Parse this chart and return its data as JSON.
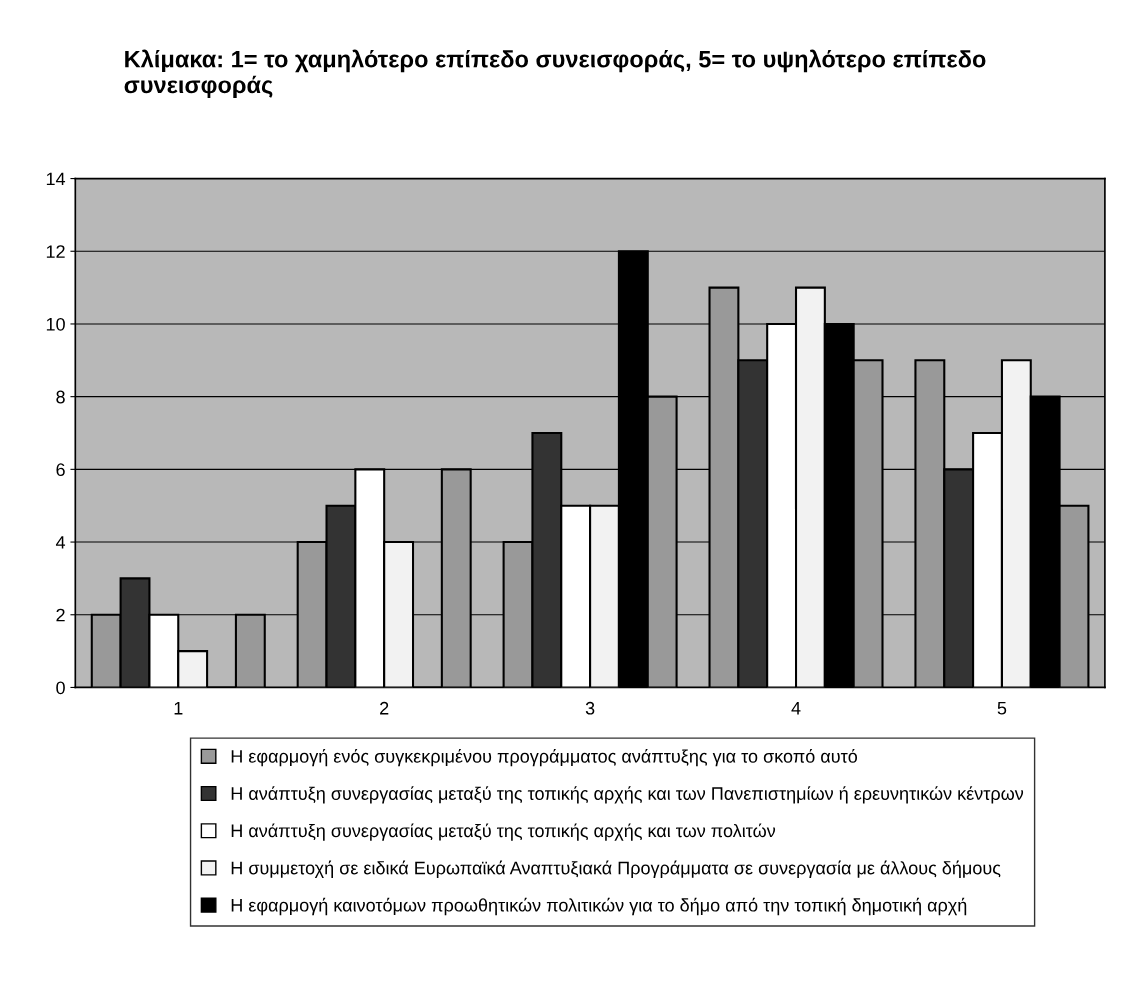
{
  "chart_data": {
    "type": "bar",
    "title": "Κλίμακα: 1= το χαμηλότερο επίπεδο συνεισφοράς, 5= το υψηλότερο επίπεδο συνεισφοράς",
    "categories": [
      "1",
      "2",
      "3",
      "4",
      "5"
    ],
    "series": [
      {
        "name": "Η εφαρμογή ενός συγκεκριμένου προγράμματος ανάπτυξης για το σκοπό αυτό",
        "color": "#999999",
        "values": [
          2,
          4,
          4,
          11,
          9
        ]
      },
      {
        "name": "Η ανάπτυξη συνεργασίας μεταξύ της τοπικής αρχής και των Πανεπιστημίων ή ερευνητικών κέντρων",
        "color": "#333333",
        "values": [
          3,
          5,
          7,
          9,
          6
        ]
      },
      {
        "name": "Η ανάπτυξη συνεργασίας μεταξύ της τοπικής αρχής και των πολιτών",
        "color": "#ffffff",
        "values": [
          2,
          6,
          5,
          10,
          7
        ]
      },
      {
        "name": "Η συμμετοχή σε ειδικά Ευρωπαϊκά Αναπτυξιακά Προγράμματα σε συνεργασία με άλλους δήμους",
        "color": "#f2f2f2",
        "values": [
          1,
          4,
          5,
          11,
          9
        ]
      },
      {
        "name": "Η εφαρμογή καινοτόμων προωθητικών πολιτικών για το δήμο από την τοπική δημοτική αρχή",
        "color": "#000000",
        "values": [
          0,
          0,
          12,
          10,
          8
        ]
      },
      {
        "color": "#999999",
        "values": [
          2,
          6,
          8,
          9,
          5
        ]
      }
    ],
    "ylim": [
      0,
      14
    ],
    "yticks": [
      0,
      2,
      4,
      6,
      8,
      10,
      12,
      14
    ],
    "grid": "y",
    "legend": "bottom"
  }
}
